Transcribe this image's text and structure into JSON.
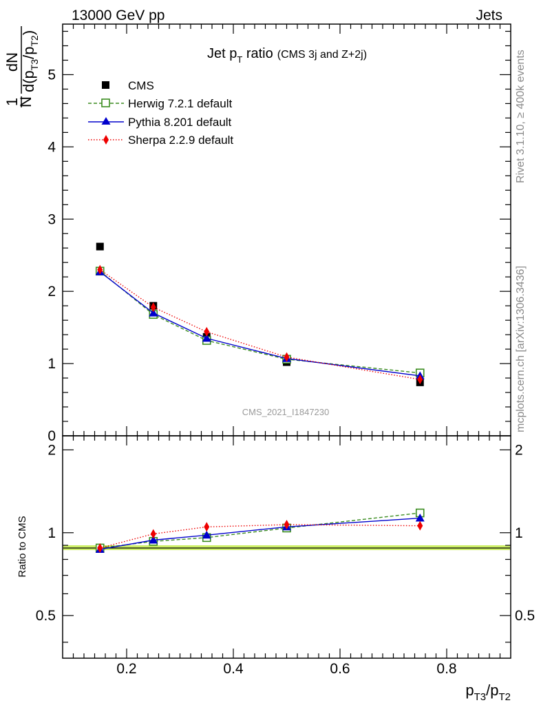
{
  "header": {
    "left": "13000 GeV pp",
    "right": "Jets"
  },
  "side_labels": {
    "rivet": "Rivet 3.1.10, ≥ 400k events",
    "mcplots": "mcplots.cern.ch [arXiv:1306.3436]"
  },
  "watermark": "CMS_2021_I1847230",
  "chart_data": [
    {
      "type": "line",
      "title": "Jet pT ratio (CMS 3j and Z+2j)",
      "title_parts": {
        "main": "Jet p",
        "sub": "T",
        "rest": " ratio",
        "small": "(CMS 3j and Z+2j)"
      },
      "ylabel": "1/N dN/d(pT3/pT2)",
      "ylabel_parts": {
        "one": "1",
        "N": "N",
        "dN": "dN",
        "d": "d(p",
        "s1": "T3",
        "mid": "/p",
        "s2": "T2",
        "close": ")"
      },
      "xlim": [
        0.08,
        0.92
      ],
      "ylim": [
        0,
        5.7
      ],
      "yticks": [
        {
          "v": 0,
          "label": "0"
        },
        {
          "v": 1,
          "label": "1"
        },
        {
          "v": 2,
          "label": "2"
        },
        {
          "v": 3,
          "label": "3"
        },
        {
          "v": 4,
          "label": "4"
        },
        {
          "v": 5,
          "label": "5"
        }
      ],
      "legend_position": "top-left",
      "series": [
        {
          "name": "CMS",
          "color": "#000000",
          "marker": "square-filled",
          "style": "none",
          "x": [
            0.15,
            0.25,
            0.35,
            0.5,
            0.75
          ],
          "y": [
            2.62,
            1.8,
            1.37,
            1.02,
            0.74
          ]
        },
        {
          "name": "Herwig 7.2.1 default",
          "color": "#3a8c1f",
          "marker": "square-open",
          "style": "dashed",
          "x": [
            0.15,
            0.25,
            0.35,
            0.5,
            0.75
          ],
          "y": [
            2.28,
            1.68,
            1.32,
            1.06,
            0.87
          ]
        },
        {
          "name": "Pythia 8.201 default",
          "color": "#0000cc",
          "marker": "triangle",
          "style": "solid",
          "x": [
            0.15,
            0.25,
            0.35,
            0.5,
            0.75
          ],
          "y": [
            2.27,
            1.7,
            1.35,
            1.07,
            0.83
          ]
        },
        {
          "name": "Sherpa 2.2.9 default",
          "color": "#ee0000",
          "marker": "diamond",
          "style": "dotted",
          "x": [
            0.15,
            0.25,
            0.35,
            0.5,
            0.75
          ],
          "y": [
            2.3,
            1.78,
            1.44,
            1.09,
            0.78
          ]
        }
      ]
    },
    {
      "type": "line",
      "ylabel": "Ratio to CMS",
      "xlabel": "pT3/pT2",
      "xlabel_parts": {
        "p1": "p",
        "s1": "T3",
        "mid": "/p",
        "s2": "T2"
      },
      "xlim": [
        0.08,
        0.92
      ],
      "ylim": [
        0.35,
        2.25
      ],
      "xticks": [
        {
          "v": 0.2,
          "label": "0.2"
        },
        {
          "v": 0.4,
          "label": "0.4"
        },
        {
          "v": 0.6,
          "label": "0.6"
        },
        {
          "v": 0.8,
          "label": "0.8"
        }
      ],
      "yticks": [
        {
          "v": 0.5,
          "label": "0.5"
        },
        {
          "v": 1,
          "label": "1"
        },
        {
          "v": 2,
          "label": "2"
        }
      ],
      "reference_band": {
        "color": "#ccee66",
        "line_color": "#000000"
      },
      "series": [
        {
          "name": "Herwig 7.2.1 default",
          "color": "#3a8c1f",
          "marker": "square-open",
          "style": "dashed",
          "x": [
            0.15,
            0.25,
            0.35,
            0.5,
            0.75
          ],
          "y": [
            0.88,
            0.93,
            0.96,
            1.04,
            1.18
          ]
        },
        {
          "name": "Pythia 8.201 default",
          "color": "#0000cc",
          "marker": "triangle",
          "style": "solid",
          "x": [
            0.15,
            0.25,
            0.35,
            0.5,
            0.75
          ],
          "y": [
            0.87,
            0.94,
            0.98,
            1.05,
            1.13
          ]
        },
        {
          "name": "Sherpa 2.2.9 default",
          "color": "#ee0000",
          "marker": "diamond",
          "style": "dotted",
          "x": [
            0.15,
            0.25,
            0.35,
            0.5,
            0.75
          ],
          "y": [
            0.88,
            0.99,
            1.05,
            1.07,
            1.06
          ]
        }
      ]
    }
  ]
}
